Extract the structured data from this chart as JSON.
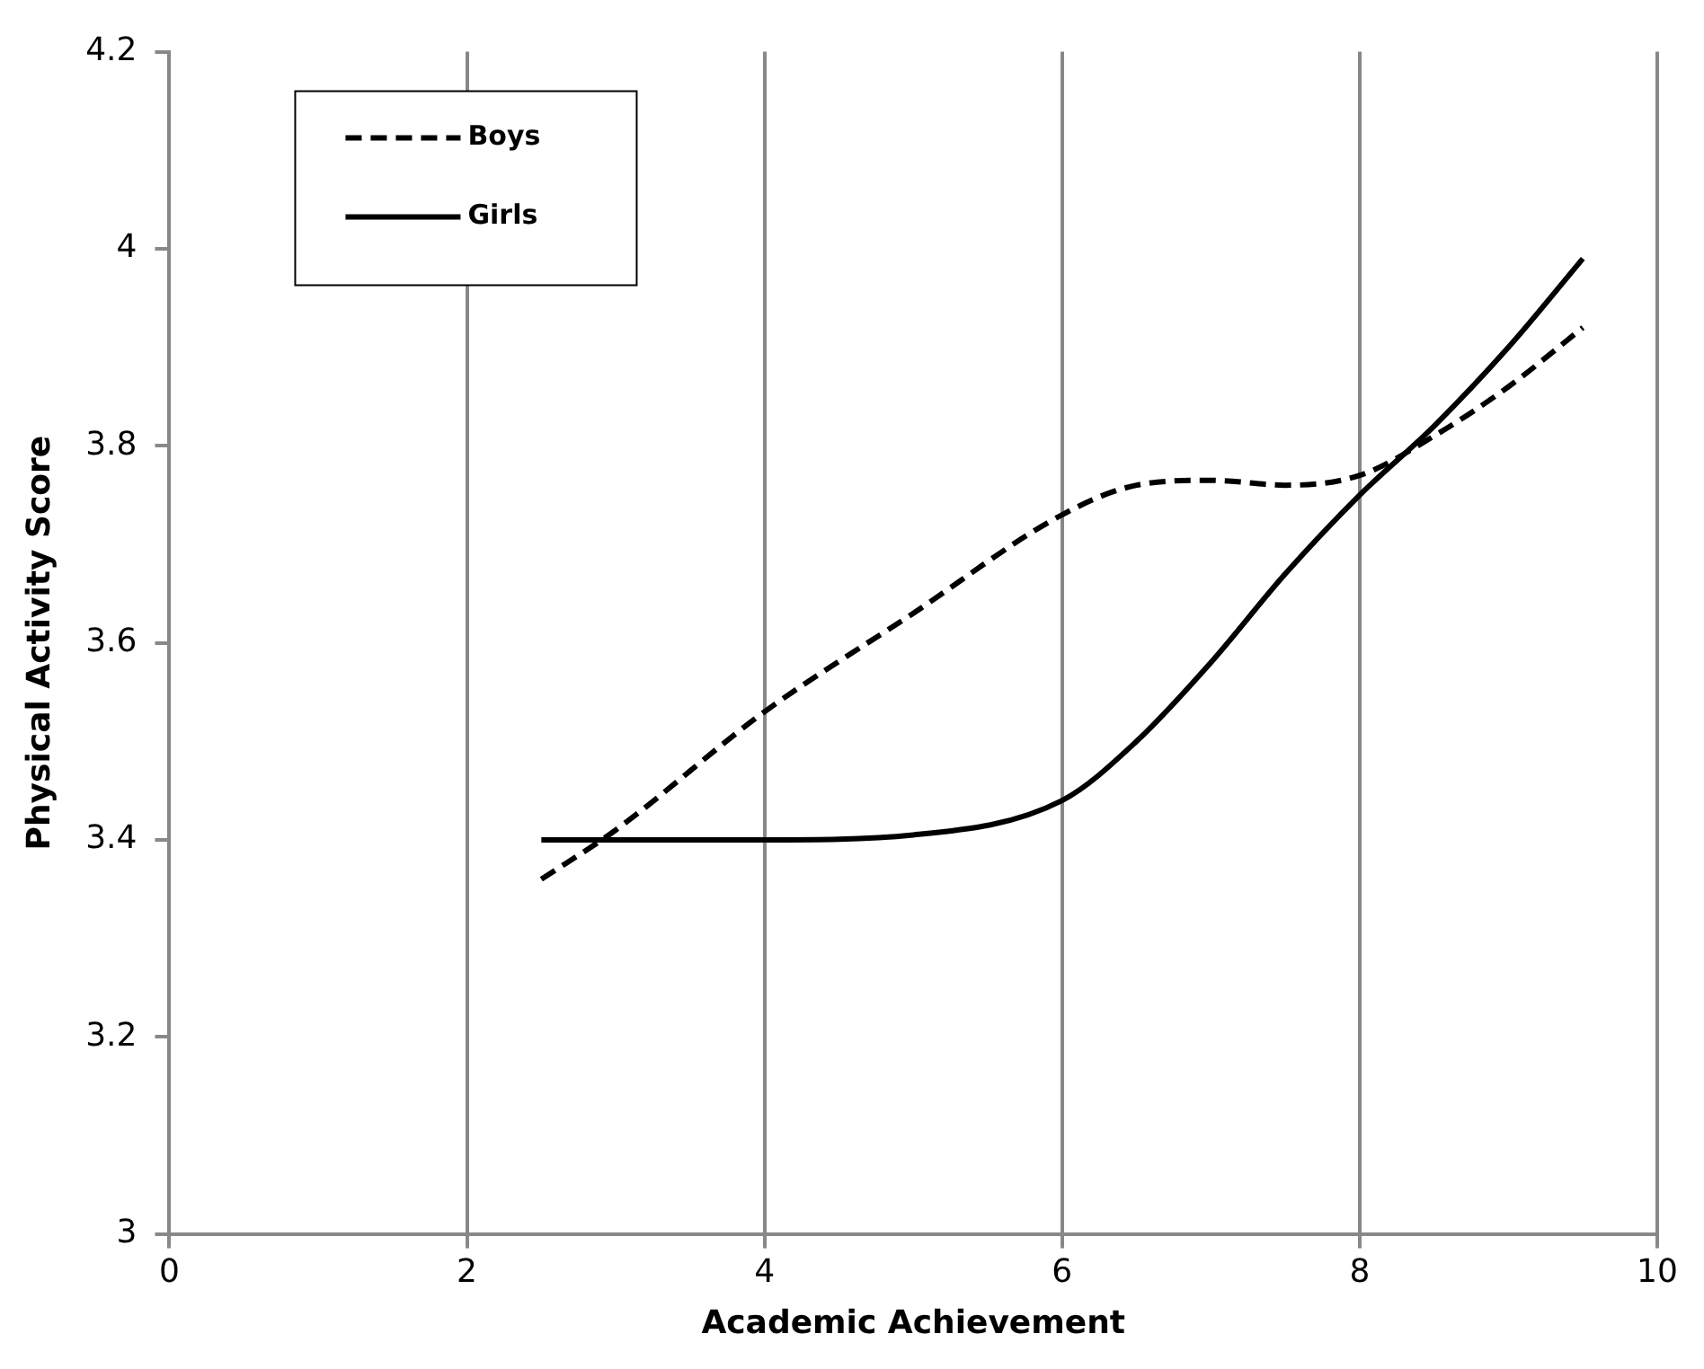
{
  "chart_data": {
    "type": "line",
    "xlabel": "Academic Achievement",
    "ylabel": "Physical Activity Score",
    "xlim": [
      0,
      10
    ],
    "xticks": [
      0,
      2,
      4,
      6,
      8,
      10
    ],
    "ylim": [
      3,
      4.2
    ],
    "yticks": [
      3,
      3.2,
      3.4,
      3.6,
      3.8,
      4,
      4.2
    ],
    "grid": "x",
    "legend": "top left",
    "marker": "none",
    "series": [
      {
        "name": "Boys",
        "color": "#000000",
        "line_style": "dashed",
        "x": [
          2.5,
          3,
          4,
          5,
          6,
          6.5,
          7,
          7.5,
          8,
          8.5,
          9,
          9.5
        ],
        "values": [
          3.36,
          3.41,
          3.53,
          3.63,
          3.73,
          3.76,
          3.765,
          3.76,
          3.77,
          3.81,
          3.86,
          3.92
        ]
      },
      {
        "name": "Girls",
        "color": "#000000",
        "line_style": "solid",
        "x": [
          2.5,
          3,
          4,
          5,
          6,
          6.5,
          7,
          7.5,
          8,
          8.5,
          9,
          9.5
        ],
        "values": [
          3.4,
          3.4,
          3.4,
          3.405,
          3.44,
          3.5,
          3.58,
          3.67,
          3.75,
          3.82,
          3.9,
          3.99
        ]
      }
    ]
  }
}
